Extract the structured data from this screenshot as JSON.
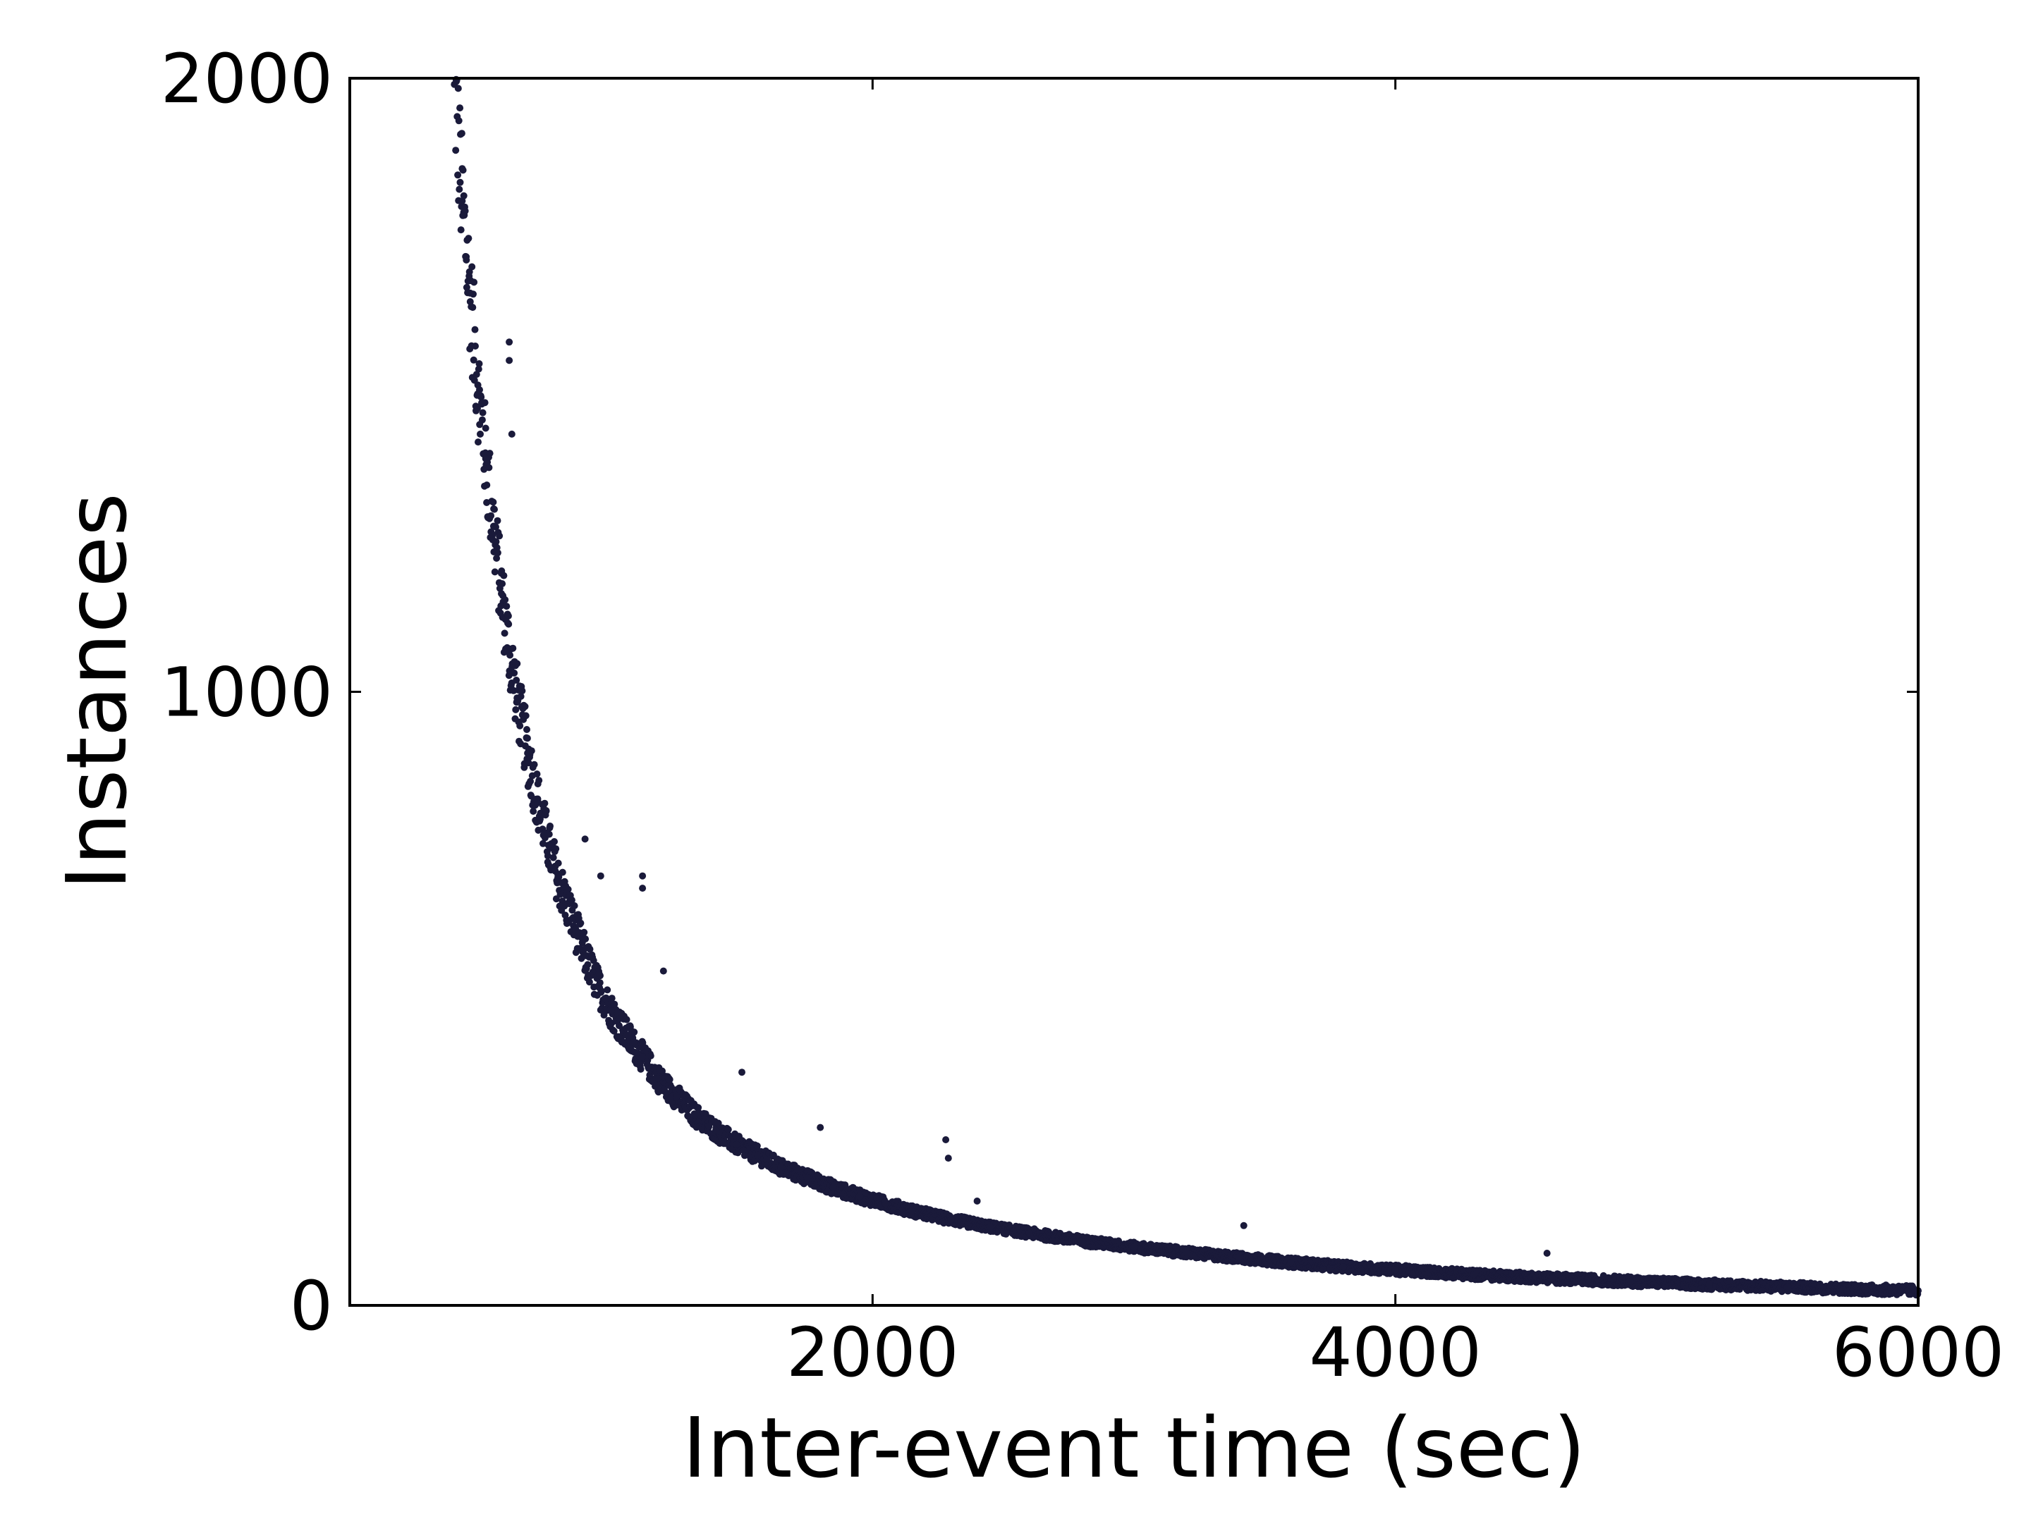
{
  "chart_data": {
    "type": "scatter",
    "title": "",
    "xlabel": "Inter-event time (sec)",
    "ylabel": "Instances",
    "xlim": [
      0,
      6000
    ],
    "ylim": [
      0,
      2000
    ],
    "xticks": [
      2000,
      4000,
      6000
    ],
    "yticks": [
      0,
      1000,
      2000
    ],
    "xtick_labels": [
      "2000",
      "4000",
      "6000"
    ],
    "ytick_labels": [
      "0",
      "1000",
      "2000"
    ],
    "grid": false,
    "marker_color": "#1a1a3a",
    "series": [
      {
        "x": [
          400,
          430,
          460,
          490,
          520,
          550,
          580,
          610,
          640,
          680,
          720,
          760,
          800,
          850,
          900,
          950,
          1000,
          1060,
          1120,
          1180,
          1250,
          1320,
          1400,
          1480,
          1560,
          1650,
          1750,
          1850,
          1950,
          2050,
          2150,
          2300,
          2450,
          2600,
          2800,
          3000,
          3200,
          3400,
          3600,
          3800,
          4000,
          4300,
          4600,
          4900,
          5200,
          5500,
          5800,
          6000
        ],
        "y": [
          1990,
          1800,
          1650,
          1500,
          1380,
          1270,
          1160,
          1070,
          990,
          900,
          820,
          750,
          690,
          630,
          570,
          520,
          480,
          440,
          405,
          370,
          340,
          310,
          285,
          262,
          245,
          225,
          208,
          192,
          178,
          166,
          154,
          140,
          128,
          118,
          105,
          95,
          86,
          78,
          70,
          63,
          58,
          50,
          44,
          39,
          34,
          30,
          26,
          24
        ]
      }
    ],
    "outliers": {
      "x": [
        610,
        610,
        620,
        900,
        960,
        1120,
        1120,
        1200,
        1500,
        1800,
        2280,
        2290,
        2400,
        3420,
        4580
      ],
      "y": [
        1570,
        1540,
        1420,
        760,
        700,
        700,
        680,
        545,
        380,
        290,
        270,
        240,
        170,
        130,
        85
      ]
    }
  }
}
